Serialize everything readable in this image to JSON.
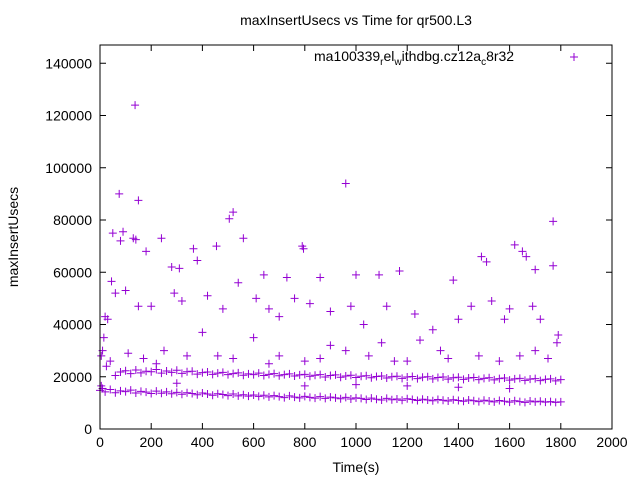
{
  "chart_data": {
    "type": "scatter",
    "title": "maxInsertUsecs vs Time for qr500.L3",
    "xlabel": "Time(s)",
    "ylabel": "maxInsertUsecs",
    "xlim": [
      0,
      2000
    ],
    "ylim": [
      0,
      147000
    ],
    "xticks": [
      "0",
      "200",
      "400",
      "600",
      "800",
      "1000",
      "1200",
      "1400",
      "1600",
      "1800",
      "2000"
    ],
    "yticks": [
      "0",
      "20000",
      "40000",
      "60000",
      "80000",
      "100000",
      "120000",
      "140000"
    ],
    "grid": false,
    "legend": {
      "position": "top-right",
      "label": "ma100339_rel_withdbg.cz12a_c8r32",
      "label_parts": [
        "ma100339",
        "r",
        "el",
        "w",
        "ithdbg.cz12a",
        "c",
        "8r32"
      ]
    },
    "marker": "plus",
    "color": "#9400d3",
    "series": [
      {
        "name": "lower-band",
        "x_start": 0,
        "x_step": 20,
        "y": [
          14800,
          14200,
          15100,
          13900,
          14600,
          14300,
          14900,
          13800,
          14400,
          14100,
          13600,
          14500,
          13700,
          14200,
          13500,
          14000,
          13300,
          13900,
          13600,
          13100,
          13800,
          13400,
          12900,
          13500,
          13200,
          12800,
          13400,
          12700,
          13100,
          12600,
          13000,
          12500,
          12900,
          12300,
          12800,
          12400,
          12000,
          12700,
          12200,
          11900,
          12500,
          12100,
          11800,
          12400,
          11700,
          12200,
          11900,
          11600,
          12100,
          11500,
          11900,
          11700,
          11300,
          11800,
          11400,
          11100,
          11700,
          11200,
          11500,
          11000,
          11600,
          11300,
          10900,
          11400,
          11100,
          10800,
          11300,
          11000,
          10700,
          11200,
          10900,
          10600,
          11100,
          10800,
          10500,
          11000,
          10700,
          10400,
          10900,
          10600,
          10300,
          10800,
          10500,
          10200,
          10700,
          10400,
          10600,
          10300,
          10500,
          10200,
          10400
        ]
      },
      {
        "name": "upper-band",
        "x_start": 60,
        "x_step": 20,
        "y": [
          20500,
          21800,
          22300,
          21200,
          22600,
          21500,
          22100,
          21900,
          22800,
          21400,
          22200,
          21700,
          22500,
          21300,
          21900,
          22100,
          21000,
          21600,
          21800,
          20900,
          21400,
          21700,
          20800,
          21200,
          21500,
          20600,
          21100,
          20800,
          21400,
          20500,
          20900,
          21200,
          20400,
          20800,
          21100,
          20300,
          20700,
          20900,
          20200,
          20600,
          20800,
          19900,
          20500,
          20700,
          19800,
          20300,
          20600,
          19700,
          20200,
          20400,
          19600,
          20100,
          20300,
          19500,
          20000,
          20200,
          19400,
          19900,
          20100,
          19300,
          19800,
          20000,
          19200,
          19700,
          19900,
          19100,
          19600,
          19800,
          19000,
          19500,
          19700,
          18900,
          19400,
          19600,
          18800,
          19300,
          19500,
          18700,
          19200,
          19400,
          18600,
          19100,
          19300,
          18500,
          19000,
          19200,
          18400,
          18900
        ]
      },
      {
        "name": "outliers",
        "points": [
          [
            137,
            124000
          ],
          [
            75,
            90000
          ],
          [
            960,
            94000
          ],
          [
            150,
            87500
          ],
          [
            520,
            83000
          ],
          [
            505,
            80500
          ],
          [
            1770,
            79500
          ],
          [
            50,
            75000
          ],
          [
            90,
            75500
          ],
          [
            80,
            72000
          ],
          [
            130,
            73000
          ],
          [
            140,
            72500
          ],
          [
            240,
            73000
          ],
          [
            180,
            68000
          ],
          [
            365,
            69000
          ],
          [
            455,
            70000
          ],
          [
            790,
            70000
          ],
          [
            795,
            69000
          ],
          [
            1620,
            70500
          ],
          [
            1650,
            68000
          ],
          [
            1665,
            66000
          ],
          [
            1490,
            66000
          ],
          [
            1510,
            64000
          ],
          [
            1700,
            61000
          ],
          [
            1770,
            62500
          ],
          [
            1170,
            60500
          ],
          [
            1090,
            59000
          ],
          [
            1000,
            59000
          ],
          [
            280,
            62000
          ],
          [
            310,
            61500
          ],
          [
            380,
            64500
          ],
          [
            560,
            73000
          ],
          [
            730,
            58000
          ],
          [
            640,
            59000
          ],
          [
            860,
            58000
          ],
          [
            1380,
            57000
          ],
          [
            610,
            50000
          ],
          [
            760,
            50000
          ],
          [
            820,
            48000
          ],
          [
            20,
            43000
          ],
          [
            30,
            42000
          ],
          [
            60,
            52000
          ],
          [
            100,
            53000
          ],
          [
            45,
            56500
          ],
          [
            150,
            47000
          ],
          [
            200,
            47000
          ],
          [
            290,
            52000
          ],
          [
            320,
            49000
          ],
          [
            420,
            51000
          ],
          [
            480,
            46000
          ],
          [
            540,
            56000
          ],
          [
            660,
            46000
          ],
          [
            700,
            43000
          ],
          [
            900,
            45000
          ],
          [
            980,
            47000
          ],
          [
            1030,
            40000
          ],
          [
            1120,
            47000
          ],
          [
            1230,
            44000
          ],
          [
            1300,
            38000
          ],
          [
            1400,
            42000
          ],
          [
            1450,
            47000
          ],
          [
            1530,
            49000
          ],
          [
            1580,
            42000
          ],
          [
            1600,
            46000
          ],
          [
            1690,
            47000
          ],
          [
            1720,
            42000
          ],
          [
            1790,
            36000
          ],
          [
            10,
            30000
          ],
          [
            15,
            35000
          ],
          [
            1785,
            33000
          ],
          [
            1100,
            33000
          ],
          [
            900,
            32000
          ],
          [
            400,
            37000
          ],
          [
            600,
            35000
          ],
          [
            250,
            30000
          ],
          [
            460,
            28000
          ],
          [
            1250,
            34000
          ],
          [
            1330,
            30000
          ],
          [
            1480,
            28000
          ],
          [
            1700,
            30000
          ],
          [
            700,
            28000
          ],
          [
            800,
            26000
          ],
          [
            960,
            30000
          ],
          [
            1150,
            26000
          ],
          [
            5,
            28000
          ],
          [
            25,
            24000
          ],
          [
            40,
            26000
          ],
          [
            110,
            29000
          ],
          [
            170,
            27000
          ],
          [
            220,
            25000
          ],
          [
            340,
            28000
          ],
          [
            520,
            27000
          ],
          [
            660,
            25000
          ],
          [
            860,
            27000
          ],
          [
            1050,
            28000
          ],
          [
            1200,
            26000
          ],
          [
            1360,
            27000
          ],
          [
            1560,
            26000
          ],
          [
            1640,
            28000
          ],
          [
            1750,
            27000
          ],
          [
            5,
            16500
          ],
          [
            10,
            15500
          ],
          [
            1200,
            16500
          ],
          [
            1400,
            16000
          ],
          [
            800,
            16500
          ],
          [
            300,
            17500
          ],
          [
            1600,
            15500
          ],
          [
            1000,
            17000
          ]
        ]
      }
    ]
  }
}
